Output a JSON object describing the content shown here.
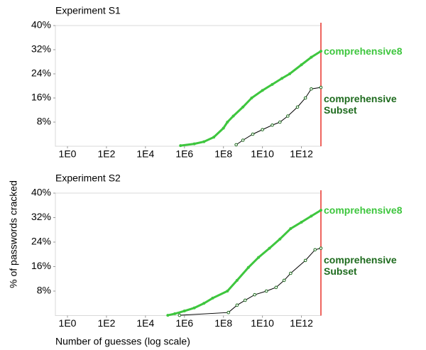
{
  "y_label": "% of passwords cracked",
  "x_label": "Number of guesses (log scale)",
  "chart_data": [
    {
      "type": "line",
      "title": "Experiment S1",
      "xscale": "log",
      "xlim": [
        0.24,
        10000000000000.0
      ],
      "ylim": [
        0,
        40
      ],
      "xticks": [
        {
          "value": 1,
          "label": "1E0"
        },
        {
          "value": 100,
          "label": "1E2"
        },
        {
          "value": 10000,
          "label": "1E4"
        },
        {
          "value": 1000000.0,
          "label": "1E6"
        },
        {
          "value": 100000000.0,
          "label": "1E8"
        },
        {
          "value": 10000000000.0,
          "label": "1E10"
        },
        {
          "value": 1000000000000.0,
          "label": "1E12"
        }
      ],
      "yticks": [
        {
          "value": 8,
          "label": "8%"
        },
        {
          "value": 16,
          "label": "16%"
        },
        {
          "value": 24,
          "label": "24%"
        },
        {
          "value": 32,
          "label": "32%"
        },
        {
          "value": 40,
          "label": "40%"
        }
      ],
      "vline": {
        "x": 10000000000000.0,
        "color": "#e8322a"
      },
      "series": [
        {
          "name": "comprehensive8",
          "color": "#3ec63e",
          "x": [
            630000.0,
            3200000.0,
            10000000.0,
            32000000.0,
            100000000.0,
            160000000.0,
            320000000.0,
            1000000000.0,
            2800000000.0,
            10000000000.0,
            32000000000.0,
            100000000000.0,
            250000000000.0,
            1000000000000.0,
            3200000000000.0,
            10000000000000.0
          ],
          "values": [
            0.2,
            0.8,
            1.5,
            3,
            6,
            8,
            10,
            13,
            16,
            18.5,
            20.5,
            22.5,
            24,
            27,
            29.5,
            31.5
          ]
        },
        {
          "name": "comprehensive Subset",
          "color": "#1e6b1e",
          "x": [
            450000000.0,
            1000000000.0,
            3200000000.0,
            10000000000.0,
            32000000000.0,
            79000000000.0,
            200000000000.0,
            630000000000.0,
            1600000000000.0,
            3200000000000.0,
            10000000000000.0
          ],
          "values": [
            0.5,
            2,
            4,
            5.5,
            7,
            8,
            10,
            13,
            16,
            19,
            19.5
          ]
        }
      ]
    },
    {
      "type": "line",
      "title": "Experiment S2",
      "xscale": "log",
      "xlim": [
        0.24,
        10000000000000.0
      ],
      "ylim": [
        0,
        40
      ],
      "xticks": [
        {
          "value": 1,
          "label": "1E0"
        },
        {
          "value": 100,
          "label": "1E2"
        },
        {
          "value": 10000,
          "label": "1E4"
        },
        {
          "value": 1000000.0,
          "label": "1E6"
        },
        {
          "value": 100000000.0,
          "label": "1E8"
        },
        {
          "value": 10000000000.0,
          "label": "1E10"
        },
        {
          "value": 1000000000000.0,
          "label": "1E12"
        }
      ],
      "yticks": [
        {
          "value": 8,
          "label": "8%"
        },
        {
          "value": 16,
          "label": "16%"
        },
        {
          "value": 24,
          "label": "24%"
        },
        {
          "value": 32,
          "label": "32%"
        },
        {
          "value": 40,
          "label": "40%"
        }
      ],
      "vline": {
        "x": 10000000000000.0,
        "color": "#e8322a"
      },
      "series": [
        {
          "name": "comprehensive8",
          "color": "#3ec63e",
          "x": [
            140000.0,
            320000.0,
            1000000.0,
            3200000.0,
            10000000.0,
            28000000.0,
            160000000.0,
            500000000.0,
            1900000000.0,
            6300000000.0,
            23000000000.0,
            79000000000.0,
            280000000000.0,
            1000000000000.0,
            3200000000000.0,
            10000000000000.0
          ],
          "values": [
            0.1,
            0.6,
            1.5,
            2.5,
            4,
            5.7,
            8,
            11.5,
            15.7,
            19,
            22,
            25,
            28.4,
            30.5,
            32.5,
            34.4
          ]
        },
        {
          "name": "comprehensive Subset",
          "color": "#1e6b1e",
          "x": [
            560000.0,
            180000000.0,
            500000000.0,
            1300000000.0,
            4000000000.0,
            16000000000.0,
            50000000000.0,
            130000000000.0,
            280000000000.0,
            1600000000000.0,
            5000000000000.0,
            10000000000000.0
          ],
          "values": [
            0.1,
            1,
            3.4,
            5,
            6.8,
            8,
            9.2,
            11.5,
            13.8,
            18,
            21.5,
            22
          ]
        }
      ]
    }
  ]
}
